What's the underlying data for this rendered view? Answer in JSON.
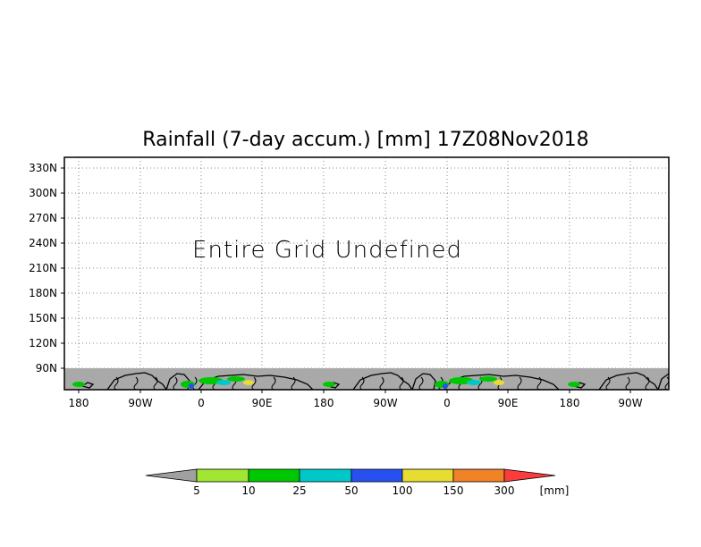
{
  "title": "Rainfall (7-day accum.) [mm] 17Z08Nov2018",
  "message": "Entire Grid Undefined",
  "y_ticks": [
    "330N",
    "300N",
    "270N",
    "240N",
    "210N",
    "180N",
    "150N",
    "120N",
    "90N"
  ],
  "x_ticks": [
    "180",
    "90W",
    "0",
    "90E",
    "180",
    "90W",
    "0",
    "90E",
    "180",
    "90W"
  ],
  "colorbar": {
    "labels": [
      "5",
      "10",
      "25",
      "50",
      "100",
      "150",
      "300"
    ],
    "unit": "[mm]",
    "colors": {
      "below": "#a0a0a0",
      "bins": [
        "#a0e632",
        "#00c800",
        "#00c8c8",
        "#2850f0",
        "#e6dc32",
        "#f08228"
      ],
      "above": "#fa3c3c"
    }
  },
  "colors": {
    "land": "#a9a9a9",
    "border": "#000000",
    "grid": "#888888"
  },
  "icons": [
    "triangle-below-icon",
    "triangle-above-icon"
  ]
}
